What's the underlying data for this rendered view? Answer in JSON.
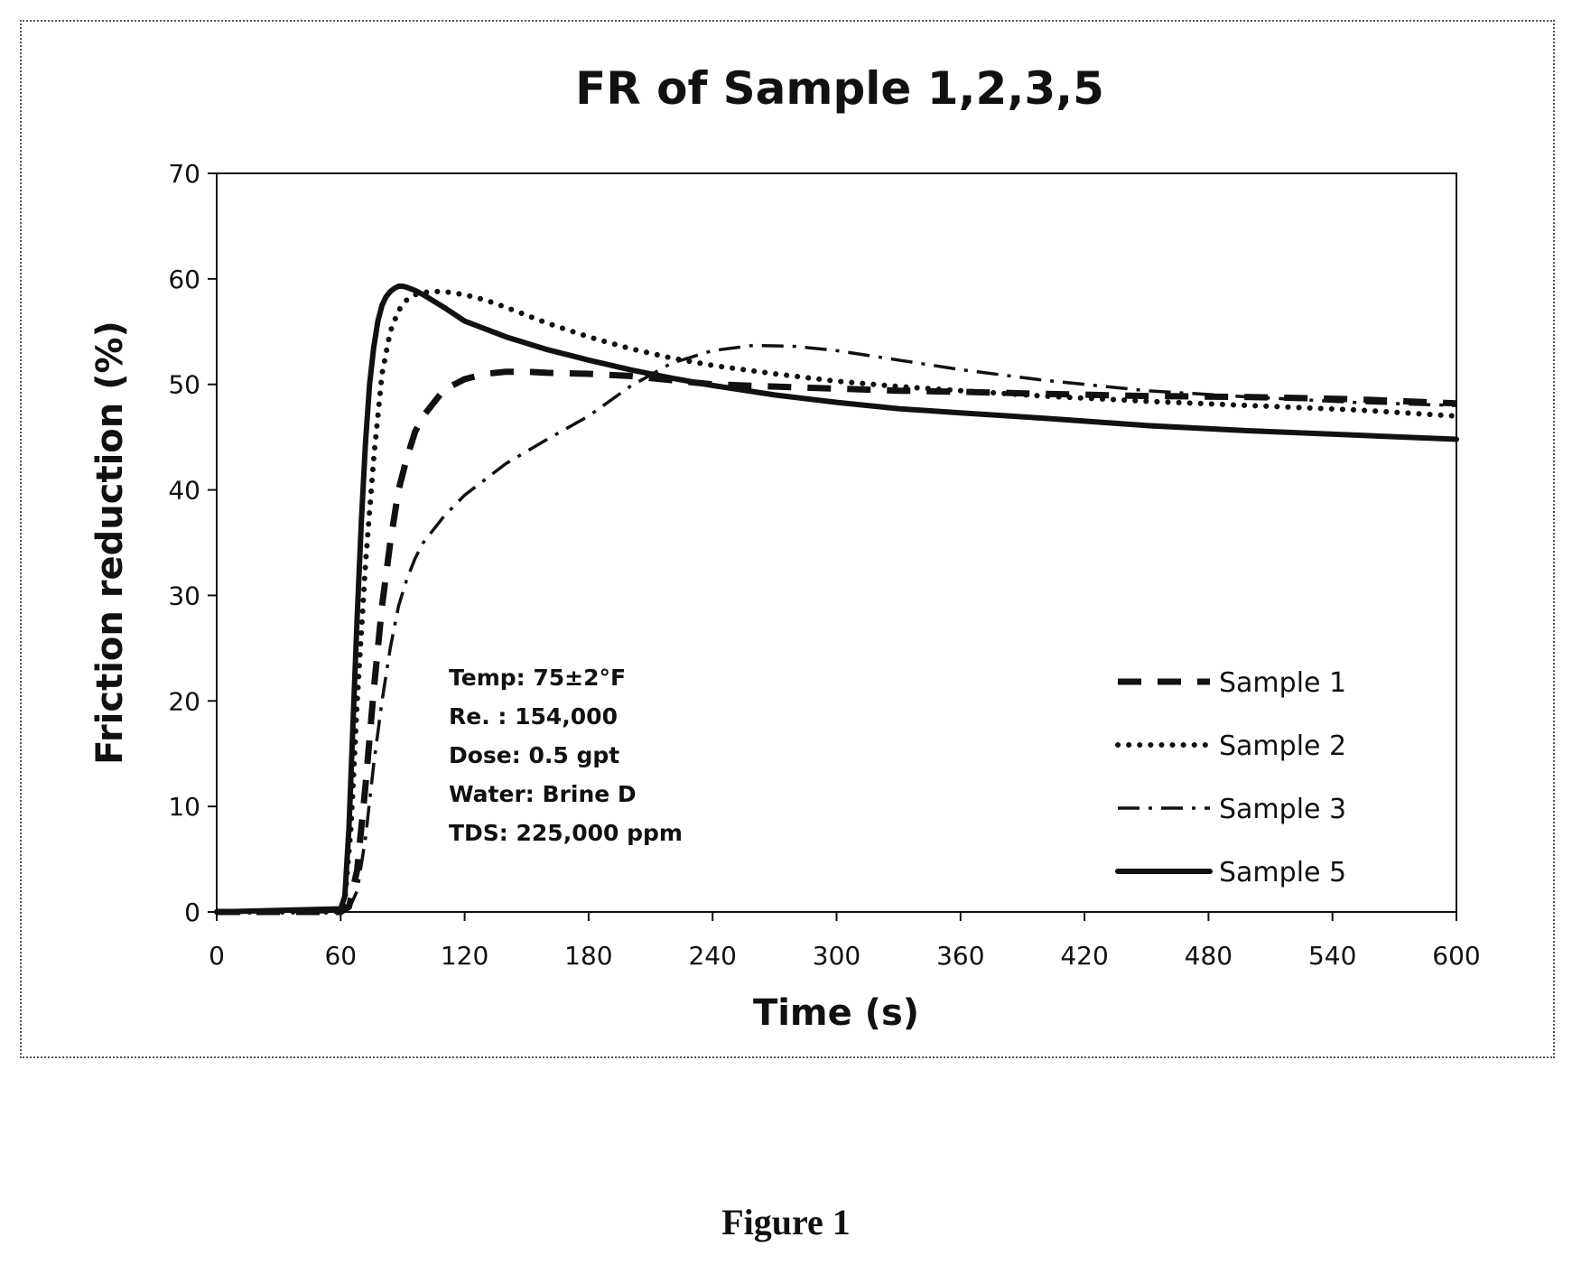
{
  "chart_data": {
    "type": "line",
    "title": "FR of Sample 1,2,3,5",
    "xlabel": "Time (s)",
    "ylabel": "Friction reduction (%)",
    "xlim": [
      0,
      600
    ],
    "ylim": [
      0,
      70
    ],
    "x_ticks": [
      "0",
      "60",
      "120",
      "180",
      "240",
      "300",
      "360",
      "420",
      "480",
      "540",
      "600"
    ],
    "y_ticks": [
      "0",
      "10",
      "20",
      "30",
      "40",
      "50",
      "60",
      "70"
    ],
    "grid": false,
    "legend_position": "right",
    "series": [
      {
        "name": "Sample 1",
        "style": "dashed",
        "x": [
          0,
          60,
          64,
          68,
          72,
          76,
          80,
          84,
          88,
          92,
          96,
          100,
          110,
          120,
          130,
          140,
          150,
          160,
          180,
          200,
          220,
          240,
          270,
          300,
          330,
          360,
          400,
          450,
          500,
          550,
          600
        ],
        "y": [
          0,
          0,
          0.5,
          4,
          12,
          21,
          29,
          35,
          40,
          43,
          45.5,
          47,
          49.5,
          50.5,
          51,
          51.2,
          51.2,
          51.1,
          51,
          50.8,
          50.4,
          50,
          49.8,
          49.6,
          49.4,
          49.3,
          49.1,
          48.9,
          48.8,
          48.6,
          48.2
        ]
      },
      {
        "name": "Sample 2",
        "style": "dotted",
        "x": [
          0,
          60,
          62,
          65,
          68,
          72,
          76,
          80,
          84,
          88,
          92,
          96,
          100,
          105,
          110,
          120,
          130,
          140,
          160,
          180,
          200,
          220,
          240,
          270,
          300,
          330,
          360,
          400,
          450,
          500,
          550,
          600
        ],
        "y": [
          0,
          0,
          1,
          8,
          20,
          33,
          43,
          51,
          55,
          57,
          58,
          58.5,
          58.7,
          58.8,
          58.8,
          58.5,
          58,
          57.3,
          55.8,
          54.5,
          53.4,
          52.5,
          51.8,
          51,
          50.3,
          49.8,
          49.4,
          48.9,
          48.4,
          48,
          47.6,
          47
        ]
      },
      {
        "name": "Sample 3",
        "style": "dash-dot",
        "x": [
          0,
          60,
          64,
          68,
          72,
          76,
          80,
          84,
          88,
          92,
          96,
          100,
          110,
          120,
          140,
          160,
          180,
          200,
          220,
          240,
          260,
          280,
          300,
          330,
          360,
          400,
          450,
          500,
          550,
          600
        ],
        "y": [
          0,
          0,
          0.3,
          2,
          7,
          14,
          20,
          25,
          29,
          31.5,
          33.5,
          35,
          37.5,
          39.5,
          42.5,
          44.8,
          47,
          49.8,
          52,
          53.2,
          53.7,
          53.6,
          53.2,
          52.3,
          51.4,
          50.4,
          49.4,
          48.8,
          48.3,
          48
        ]
      },
      {
        "name": "Sample 5",
        "style": "solid",
        "x": [
          0,
          60,
          62,
          64,
          66,
          68,
          70,
          72,
          74,
          76,
          78,
          80,
          82,
          84,
          86,
          88,
          90,
          92,
          96,
          100,
          110,
          120,
          140,
          160,
          180,
          200,
          220,
          240,
          270,
          300,
          330,
          360,
          400,
          450,
          500,
          550,
          600
        ],
        "y": [
          0,
          0.3,
          1.5,
          8,
          18,
          28,
          37,
          44.5,
          50,
          53.5,
          56,
          57.5,
          58.3,
          58.8,
          59.1,
          59.3,
          59.3,
          59.2,
          58.9,
          58.5,
          57.3,
          56,
          54.5,
          53.3,
          52.3,
          51.4,
          50.6,
          49.9,
          49,
          48.3,
          47.7,
          47.3,
          46.8,
          46.1,
          45.6,
          45.2,
          44.8
        ]
      }
    ],
    "annotations": [
      "Temp: 75±2°F",
      "Re. : 154,000",
      "Dose: 0.5 gpt",
      "Water: Brine D",
      "TDS: 225,000 ppm"
    ]
  },
  "figure_caption": "Figure 1",
  "colors": {
    "line": "#111111",
    "background": "#ffffff"
  }
}
